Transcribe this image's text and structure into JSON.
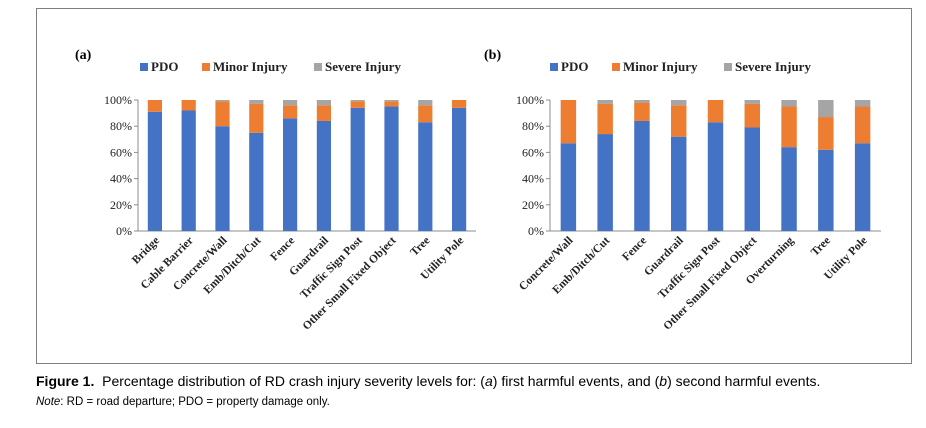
{
  "colors": {
    "PDO": "#4472C4",
    "Minor Injury": "#ED7D31",
    "Severe Injury": "#A5A5A5"
  },
  "caption": {
    "figure_label": "Figure 1.",
    "text": "Percentage distribution of RD crash injury severity levels for: (",
    "a": "a",
    "mid": ") first harmful events, and (",
    "b": "b",
    "end": ") second harmful events."
  },
  "note": {
    "label": "Note",
    "text": ": RD = road departure; PDO = property damage only."
  },
  "chart_data": [
    {
      "type": "bar",
      "stacked": true,
      "panel_label": "(a)",
      "title": "",
      "legend_position": "top",
      "yticks": [
        "0%",
        "20%",
        "40%",
        "60%",
        "80%",
        "100%"
      ],
      "ylim": [
        0,
        100
      ],
      "categories": [
        "Bridge",
        "Cable Barrier",
        "Concrete/Wall",
        "Emb/Ditch/Cut",
        "Fence",
        "Guardrail",
        "Traffic Sign Post",
        "Other Small Fixed Object",
        "Tree",
        "Utility Pole"
      ],
      "series": [
        {
          "name": "PDO",
          "values": [
            91,
            92,
            80,
            75,
            86,
            84,
            94,
            95,
            83,
            94
          ]
        },
        {
          "name": "Minor Injury",
          "values": [
            9,
            8,
            19,
            22,
            10,
            12,
            5,
            4,
            13,
            6
          ]
        },
        {
          "name": "Severe Injury",
          "values": [
            0,
            0,
            1,
            3,
            4,
            4,
            1,
            1,
            4,
            0
          ]
        }
      ]
    },
    {
      "type": "bar",
      "stacked": true,
      "panel_label": "(b)",
      "title": "",
      "legend_position": "top",
      "yticks": [
        "0%",
        "20%",
        "40%",
        "60%",
        "80%",
        "100%"
      ],
      "ylim": [
        0,
        100
      ],
      "categories": [
        "Concrete/Wall",
        "Emb/Ditch/Cut",
        "Fence",
        "Guardrail",
        "Traffic Sign Post",
        "Other Small Fixed Object",
        "Overturning",
        "Tree",
        "Utility Pole"
      ],
      "series": [
        {
          "name": "PDO",
          "values": [
            67,
            74,
            84,
            72,
            83,
            79,
            64,
            62,
            67
          ]
        },
        {
          "name": "Minor Injury",
          "values": [
            33,
            23,
            14,
            24,
            17,
            18,
            31,
            25,
            28
          ]
        },
        {
          "name": "Severe Injury",
          "values": [
            0,
            3,
            2,
            4,
            0,
            3,
            5,
            13,
            5
          ]
        }
      ]
    }
  ]
}
